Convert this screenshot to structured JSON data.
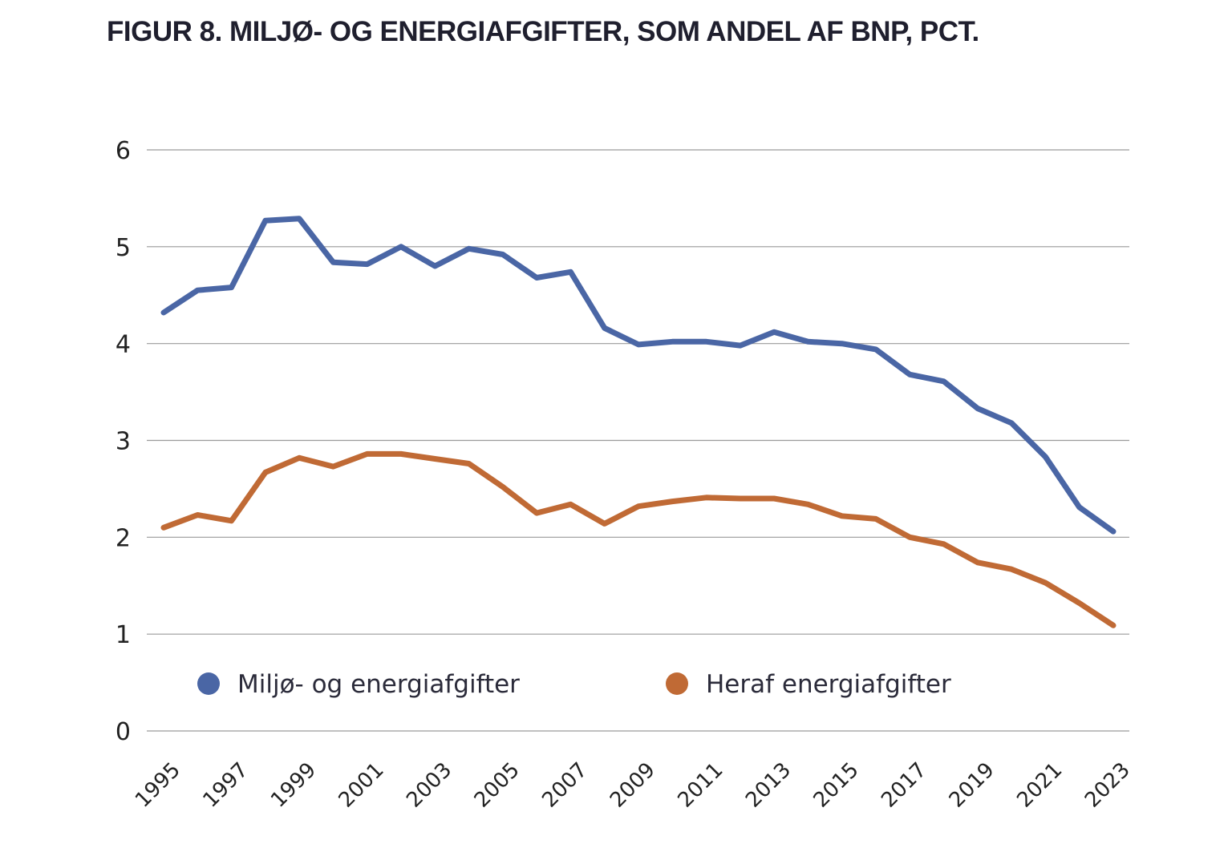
{
  "title": "FIGUR 8. MILJØ- OG ENERGIAFGIFTER, SOM ANDEL AF BNP, PCT.",
  "chart_data": {
    "type": "line",
    "title": "FIGUR 8. MILJØ- OG ENERGIAFGIFTER, SOM ANDEL AF BNP, PCT.",
    "xlabel": "",
    "ylabel": "",
    "ylim": [
      0,
      6
    ],
    "yticks": [
      "0",
      "1",
      "2",
      "3",
      "4",
      "5",
      "6"
    ],
    "x": [
      1995,
      1996,
      1997,
      1998,
      1999,
      2000,
      2001,
      2002,
      2003,
      2004,
      2005,
      2006,
      2007,
      2008,
      2009,
      2010,
      2011,
      2012,
      2013,
      2014,
      2015,
      2016,
      2017,
      2018,
      2019,
      2020,
      2021,
      2022,
      2023
    ],
    "xtick_labels": [
      "1995",
      "1997",
      "1999",
      "2001",
      "2003",
      "2005",
      "2007",
      "2009",
      "2011",
      "2013",
      "2015",
      "2017",
      "2019",
      "2021",
      "2023"
    ],
    "grid": true,
    "legend_position": "bottom-inside",
    "series": [
      {
        "name": "Miljø- og energiafgifter",
        "color": "#4a66a5",
        "values": [
          4.32,
          4.55,
          4.58,
          5.27,
          5.29,
          4.84,
          4.82,
          5.0,
          4.8,
          4.98,
          4.92,
          4.68,
          4.74,
          4.16,
          3.99,
          4.02,
          4.02,
          3.98,
          4.12,
          4.02,
          4.0,
          3.94,
          3.68,
          3.61,
          3.33,
          3.18,
          2.83,
          2.31,
          2.06
        ]
      },
      {
        "name": "Heraf energiafgifter",
        "color": "#c06a35",
        "values": [
          2.1,
          2.23,
          2.17,
          2.67,
          2.82,
          2.73,
          2.86,
          2.86,
          2.81,
          2.76,
          2.52,
          2.25,
          2.34,
          2.14,
          2.32,
          2.37,
          2.41,
          2.4,
          2.4,
          2.34,
          2.22,
          2.19,
          2.0,
          1.93,
          1.74,
          1.67,
          1.53,
          1.32,
          1.09
        ]
      }
    ]
  }
}
